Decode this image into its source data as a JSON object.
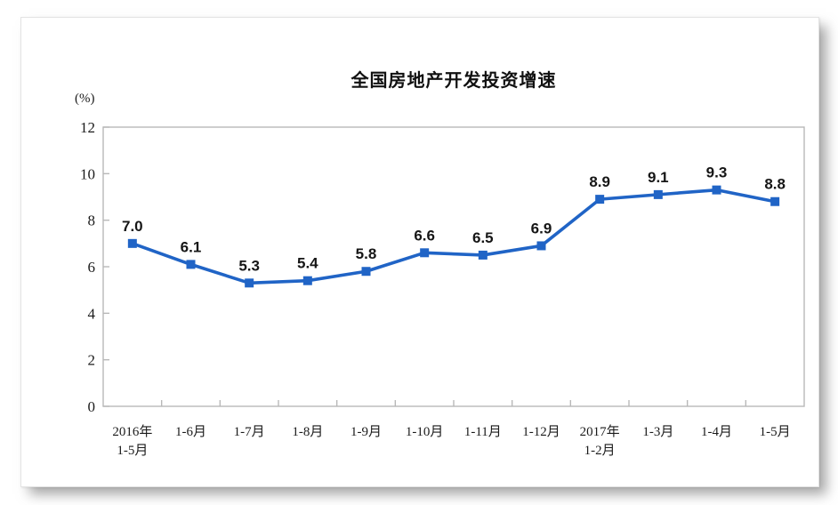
{
  "chart_data": {
    "type": "line",
    "title": "全国房地产开发投资增速",
    "unit_label": "(%)",
    "categories": [
      "2016年\n1-5月",
      "1-6月",
      "1-7月",
      "1-8月",
      "1-9月",
      "1-10月",
      "1-11月",
      "1-12月",
      "2017年\n1-2月",
      "1-3月",
      "1-4月",
      "1-5月"
    ],
    "values": [
      7.0,
      6.1,
      5.3,
      5.4,
      5.8,
      6.6,
      6.5,
      6.9,
      8.9,
      9.1,
      9.3,
      8.8
    ],
    "data_labels": [
      "7.0",
      "6.1",
      "5.3",
      "5.4",
      "5.8",
      "6.6",
      "6.5",
      "6.9",
      "8.9",
      "9.1",
      "9.3",
      "8.8"
    ],
    "ylim": [
      0,
      12
    ],
    "yticks": [
      0,
      2,
      4,
      6,
      8,
      10,
      12
    ],
    "grid": false,
    "legend": "none",
    "line_color": "#2064c6",
    "marker": "square",
    "axis_color": "#b8b8b8",
    "tick_label_color": "#1b1b1b",
    "data_label_color": "#161616"
  }
}
